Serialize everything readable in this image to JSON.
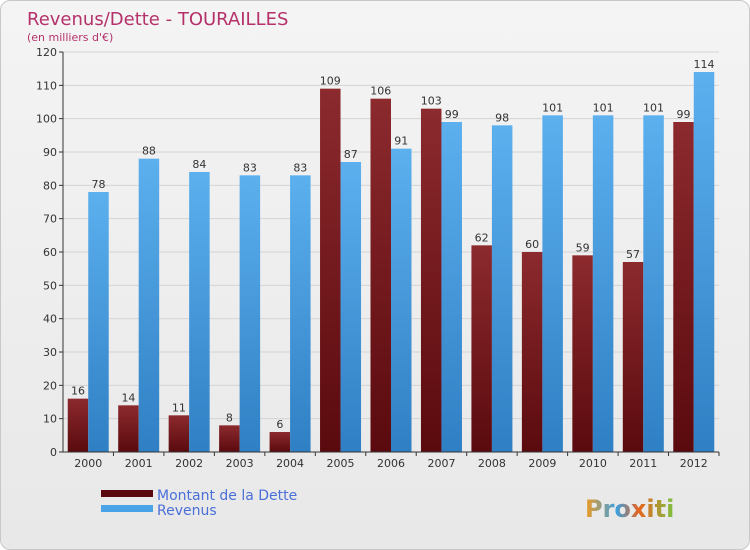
{
  "chart_data": {
    "type": "bar",
    "title": "Revenus/Dette - TOURAILLES",
    "subtitle": "(en milliers d'€)",
    "categories": [
      "2000",
      "2001",
      "2002",
      "2003",
      "2004",
      "2005",
      "2006",
      "2007",
      "2008",
      "2009",
      "2010",
      "2011",
      "2012"
    ],
    "series": [
      {
        "name": "Montant de la Dette",
        "color": "#7a1a1e",
        "values": [
          16,
          14,
          11,
          8,
          6,
          109,
          106,
          103,
          62,
          60,
          59,
          57,
          99
        ]
      },
      {
        "name": "Revenus",
        "color": "#4aa3e6",
        "values": [
          78,
          88,
          84,
          83,
          83,
          87,
          91,
          99,
          98,
          101,
          101,
          101,
          114
        ]
      }
    ],
    "ylim": [
      0,
      120
    ],
    "yticks": [
      0,
      10,
      20,
      30,
      40,
      50,
      60,
      70,
      80,
      90,
      100,
      110,
      120
    ],
    "grid": true,
    "legend_position": "bottom-left"
  },
  "branding": {
    "logo_text": "Proxiti"
  }
}
